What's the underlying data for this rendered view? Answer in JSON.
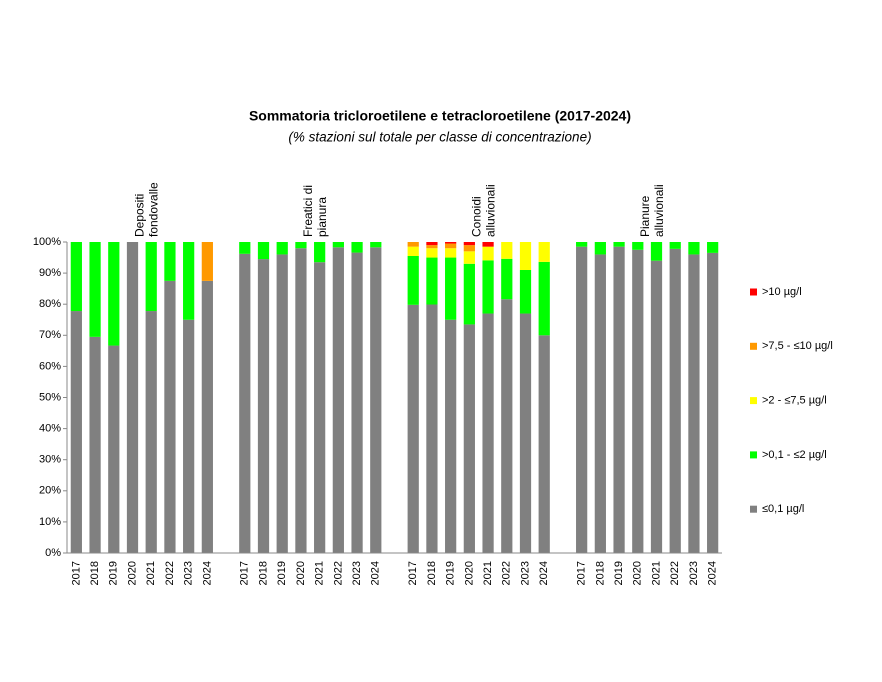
{
  "chart_data": {
    "type": "stacked_bar",
    "title": "Sommatoria tricloroetilene e tetracloroetilene (2017-2024)",
    "subtitle": "(% stazioni sul totale per classe di concentrazione)",
    "group_labels": [
      [
        "Depositi",
        "fondovalle"
      ],
      [
        "Freatici di",
        "pianura"
      ],
      [
        "Conoidi",
        "alluvionali"
      ],
      [
        "Pianure",
        "alluvionali"
      ]
    ],
    "categories": [
      "2017",
      "2018",
      "2019",
      "2020",
      "2021",
      "2022",
      "2023",
      "2024",
      null,
      "2017",
      "2018",
      "2019",
      "2020",
      "2021",
      "2022",
      "2023",
      "2024",
      null,
      "2017",
      "2018",
      "2019",
      "2020",
      "2021",
      "2022",
      "2023",
      "2024",
      null,
      "2017",
      "2018",
      "2019",
      "2020",
      "2021",
      "2022",
      "2023",
      "2024"
    ],
    "series": [
      {
        "name": "≤0,1 µg/l",
        "color": "#808080",
        "values": [
          77.8,
          69.5,
          66.7,
          100,
          77.8,
          87.5,
          75,
          87.5,
          null,
          96.2,
          94.5,
          96,
          98,
          93.5,
          98.3,
          96.6,
          98.3,
          null,
          79.8,
          79.9,
          75,
          73.5,
          77,
          81.6,
          77,
          70,
          null,
          98.5,
          96,
          98.5,
          97.5,
          94,
          97.8,
          96,
          96.5
        ]
      },
      {
        "name": ">0,1 - ≤2 µg/l",
        "color": "#00ff00",
        "values": [
          22.2,
          30.5,
          33.3,
          0,
          22.2,
          12.5,
          25,
          0,
          null,
          3.8,
          5.5,
          4,
          2,
          6.5,
          1.7,
          3.4,
          1.7,
          null,
          15.7,
          15.1,
          20,
          19.5,
          17.1,
          13,
          14,
          23.6,
          null,
          1.5,
          4,
          1.5,
          2.5,
          6,
          2.2,
          4,
          3.5
        ]
      },
      {
        "name": ">2 - ≤7,5 µg/l",
        "color": "#ffff00",
        "values": [
          0,
          0,
          0,
          0,
          0,
          0,
          0,
          0,
          null,
          0,
          0,
          0,
          0,
          0,
          0,
          0,
          0,
          null,
          3,
          3,
          3,
          4,
          4.4,
          5.4,
          9,
          6.4,
          null,
          0,
          0,
          0,
          0,
          0,
          0,
          0,
          0
        ]
      },
      {
        "name": ">7,5 - ≤10 µg/l",
        "color": "#ff9900",
        "values": [
          0,
          0,
          0,
          0,
          0,
          0,
          0,
          12.5,
          null,
          0,
          0,
          0,
          0,
          0,
          0,
          0,
          0,
          null,
          1.5,
          1,
          1.5,
          2,
          0,
          0,
          0,
          0,
          null,
          0,
          0,
          0,
          0,
          0,
          0,
          0,
          0
        ]
      },
      {
        "name": ">10 µg/l",
        "color": "#ff0000",
        "values": [
          0,
          0,
          0,
          0,
          0,
          0,
          0,
          0,
          null,
          0,
          0,
          0,
          0,
          0,
          0,
          0,
          0,
          null,
          0,
          1,
          0.5,
          1,
          1.5,
          0,
          0,
          0,
          null,
          0,
          0,
          0,
          0,
          0,
          0,
          0,
          0
        ]
      }
    ],
    "ylim": [
      0,
      100
    ],
    "yticks": [
      {
        "value": 0,
        "label": "0%"
      },
      {
        "value": 10,
        "label": "10%"
      },
      {
        "value": 20,
        "label": "20%"
      },
      {
        "value": 30,
        "label": "30%"
      },
      {
        "value": 40,
        "label": "40%"
      },
      {
        "value": 50,
        "label": "50%"
      },
      {
        "value": 60,
        "label": "60%"
      },
      {
        "value": 70,
        "label": "70%"
      },
      {
        "value": 80,
        "label": "80%"
      },
      {
        "value": 90,
        "label": "90%"
      },
      {
        "value": 100,
        "label": "100%"
      }
    ],
    "grid": false,
    "legend": "right"
  }
}
